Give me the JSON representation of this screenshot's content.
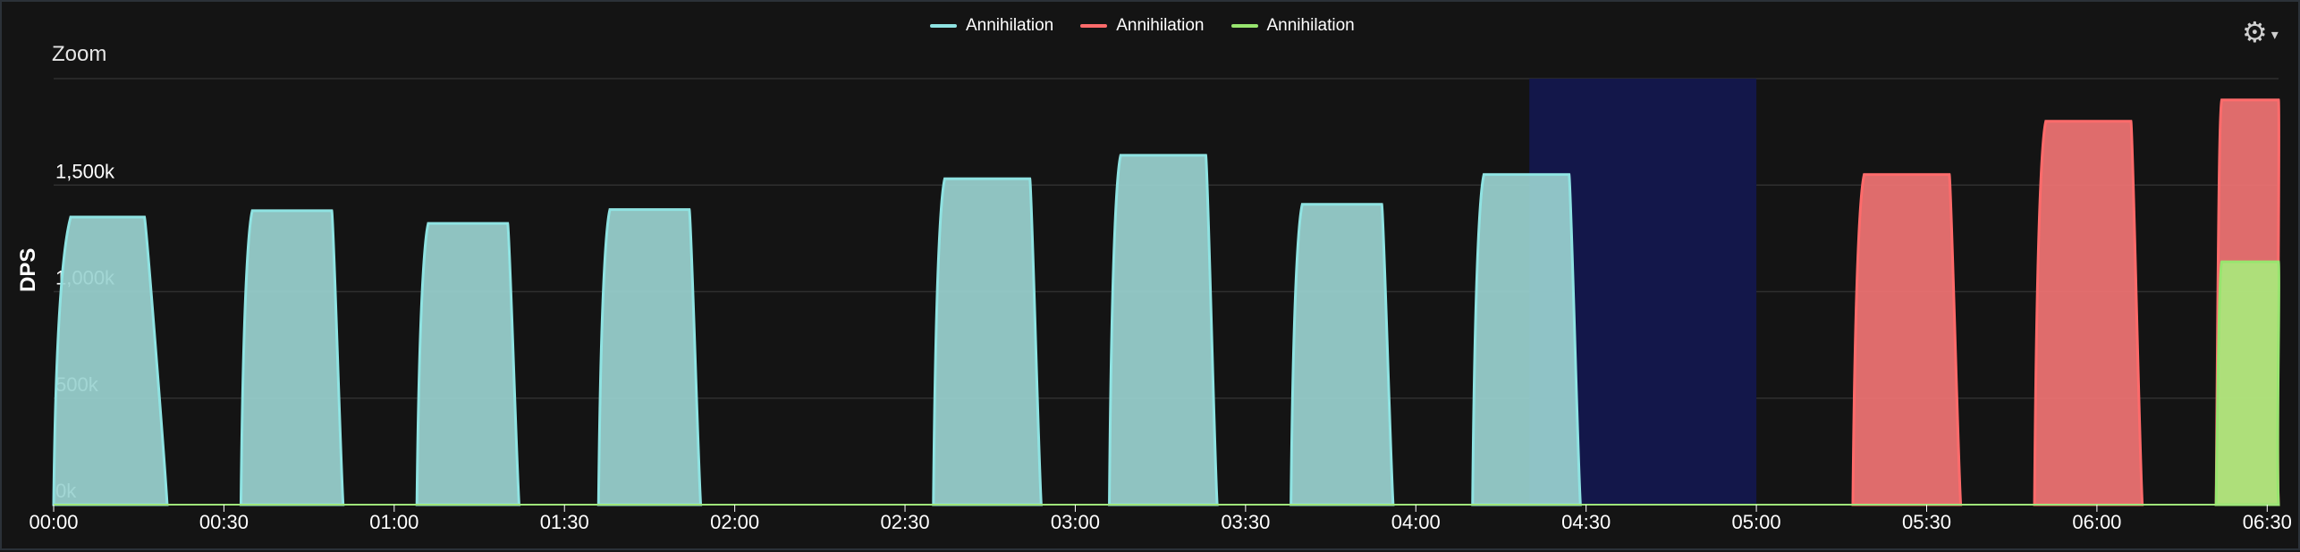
{
  "legend": {
    "items": [
      {
        "label": "Annihilation",
        "color": "#8fe3e2"
      },
      {
        "label": "Annihilation",
        "color": "#ff6b6b"
      },
      {
        "label": "Annihilation",
        "color": "#98e56f"
      }
    ]
  },
  "toolbar": {
    "settings_icon": "gear-icon",
    "dropdown_icon": "caret-down-icon"
  },
  "zoom_label": "Zoom",
  "chart_data": {
    "type": "area",
    "title": "",
    "xlabel": "",
    "ylabel": "DPS",
    "x_unit": "time",
    "xlim": [
      "00:00",
      "06:32"
    ],
    "ylim": [
      0,
      2000
    ],
    "y_tick_values": [
      0,
      500,
      1000,
      1500
    ],
    "y_tick_labels": [
      "0k",
      "500k",
      "1,000k",
      "1,500k"
    ],
    "x_tick_values": [
      "00:00",
      "00:30",
      "01:00",
      "01:30",
      "02:00",
      "02:30",
      "03:00",
      "03:30",
      "04:00",
      "04:30",
      "05:00",
      "05:30",
      "06:00",
      "06:30"
    ],
    "x_tick_labels": [
      "00:00",
      "00:30",
      "01:00",
      "01:30",
      "02:00",
      "02:30",
      "03:00",
      "03:30",
      "04:00",
      "04:30",
      "05:00",
      "05:30",
      "06:00",
      "06:30"
    ],
    "grid": true,
    "legend_position": "top-center",
    "highlight_range": [
      "04:20",
      "05:00"
    ],
    "highlight_color": "#13174a",
    "series": [
      {
        "name": "Annihilation",
        "color": "#8fe3e2",
        "fill": "#9ad3d0",
        "pulses": [
          {
            "x": [
              "00:00",
              "00:03",
              "00:16",
              "00:20"
            ],
            "y": [
              0,
              1350,
              1350,
              0
            ]
          },
          {
            "x": [
              "00:33",
              "00:35",
              "00:49",
              "00:51"
            ],
            "y": [
              0,
              1380,
              1380,
              0
            ]
          },
          {
            "x": [
              "01:04",
              "01:06",
              "01:20",
              "01:22"
            ],
            "y": [
              0,
              1320,
              1320,
              0
            ]
          },
          {
            "x": [
              "01:36",
              "01:38",
              "01:52",
              "01:54"
            ],
            "y": [
              0,
              1385,
              1385,
              0
            ]
          },
          {
            "x": [
              "02:35",
              "02:37",
              "02:52",
              "02:54"
            ],
            "y": [
              0,
              1530,
              1530,
              0
            ]
          },
          {
            "x": [
              "03:06",
              "03:08",
              "03:23",
              "03:25"
            ],
            "y": [
              0,
              1640,
              1640,
              0
            ]
          },
          {
            "x": [
              "03:38",
              "03:40",
              "03:54",
              "03:56"
            ],
            "y": [
              0,
              1410,
              1410,
              0
            ]
          },
          {
            "x": [
              "04:10",
              "04:12",
              "04:27",
              "04:29"
            ],
            "y": [
              0,
              1550,
              1550,
              0
            ]
          }
        ]
      },
      {
        "name": "Annihilation",
        "color": "#ff6b6b",
        "fill": "#f17474",
        "pulses": [
          {
            "x": [
              "05:17",
              "05:19",
              "05:34",
              "05:36"
            ],
            "y": [
              0,
              1550,
              1550,
              0
            ]
          },
          {
            "x": [
              "05:49",
              "05:51",
              "06:06",
              "06:08"
            ],
            "y": [
              0,
              1800,
              1800,
              0
            ]
          },
          {
            "x": [
              "06:21",
              "06:22",
              "06:32",
              "06:32"
            ],
            "y": [
              0,
              1900,
              1900,
              0
            ]
          }
        ]
      },
      {
        "name": "Annihilation",
        "color": "#98e56f",
        "fill": "#a9e97c",
        "pulses": [
          {
            "x": [
              "06:21",
              "06:22",
              "06:32",
              "06:32"
            ],
            "y": [
              0,
              1140,
              1140,
              0
            ]
          }
        ]
      }
    ]
  }
}
